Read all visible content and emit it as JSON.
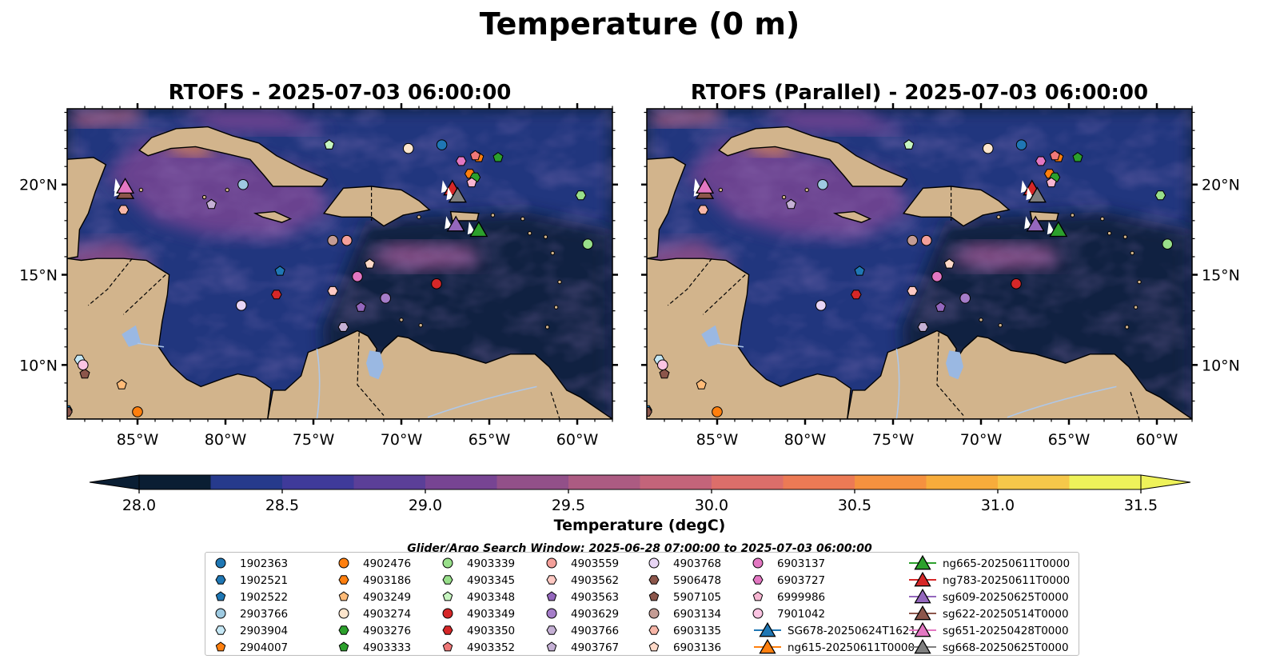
{
  "figure": {
    "suptitle": "Temperature (0 m)",
    "search_window": "Glider/Argo Search Window: 2025-06-28 07:00:00 to 2025-07-03 06:00:00"
  },
  "chart_data": {
    "type": "heatmap",
    "panels": [
      {
        "title": "RTOFS - 2025-07-03 06:00:00"
      },
      {
        "title": "RTOFS (Parallel) - 2025-07-03 06:00:00"
      }
    ],
    "xlim": [
      -89,
      -58
    ],
    "ylim": [
      7,
      24.2
    ],
    "xticks": [
      -85,
      -80,
      -75,
      -70,
      -65,
      -60
    ],
    "xtick_labels": [
      "85°W",
      "80°W",
      "75°W",
      "70°W",
      "65°W",
      "60°W"
    ],
    "yticks": [
      10,
      15,
      20
    ],
    "ytick_labels": [
      "10°N",
      "15°N",
      "20°N"
    ],
    "colorbar": {
      "label": "Temperature (degC)",
      "min": 28.0,
      "max": 31.5,
      "ticks": [
        28.0,
        28.5,
        29.0,
        29.5,
        30.0,
        30.5,
        31.0,
        31.5
      ],
      "tick_labels": [
        "28.0",
        "28.5",
        "29.0",
        "29.5",
        "30.0",
        "30.5",
        "31.0",
        "31.5"
      ],
      "colors": [
        "#0a1e33",
        "#13305a",
        "#263a8c",
        "#3f3a9a",
        "#5b3f98",
        "#774493",
        "#925089",
        "#ac5b82",
        "#c4647a",
        "#dc6e6a",
        "#ec7a55",
        "#f5913f",
        "#f7ac3b",
        "#f6c84a",
        "#eef25a"
      ],
      "extend": "both"
    },
    "land_color": "#d2b48c",
    "lake_color": "#9ab8e2",
    "argo_floats": [
      {
        "id": "1902363",
        "lon": -67.7,
        "lat": 22.2,
        "marker": "circle",
        "color": "#1f77b4"
      },
      {
        "id": "1902521",
        "lon": -89.0,
        "lat": 7.5,
        "marker": "hexagon",
        "color": "#1f77b4"
      },
      {
        "id": "1902522",
        "lon": -76.9,
        "lat": 15.2,
        "marker": "pentagon",
        "color": "#1f77b4"
      },
      {
        "id": "2903766",
        "lon": -79.0,
        "lat": 20.0,
        "marker": "circle",
        "color": "#9ecae1"
      },
      {
        "id": "2903904",
        "lon": -88.3,
        "lat": 10.3,
        "marker": "hexagon",
        "color": "#c6e8f5"
      },
      {
        "id": "2904007",
        "lon": -65.6,
        "lat": 21.5,
        "marker": "pentagon",
        "color": "#ff7f0e"
      },
      {
        "id": "4902476",
        "lon": -85.0,
        "lat": 7.4,
        "marker": "circle",
        "color": "#ff7f0e"
      },
      {
        "id": "4903186",
        "lon": -66.1,
        "lat": 20.6,
        "marker": "hexagon",
        "color": "#ff7f0e"
      },
      {
        "id": "4903249",
        "lon": -85.9,
        "lat": 8.9,
        "marker": "pentagon",
        "color": "#ffbb78"
      },
      {
        "id": "4903274",
        "lon": -69.6,
        "lat": 22.0,
        "marker": "circle",
        "color": "#fde5cc"
      },
      {
        "id": "4903276",
        "lon": -65.8,
        "lat": 20.4,
        "marker": "hexagon",
        "color": "#2ca02c"
      },
      {
        "id": "4903333",
        "lon": -64.5,
        "lat": 21.5,
        "marker": "pentagon",
        "color": "#2ca02c"
      },
      {
        "id": "4903339",
        "lon": -59.4,
        "lat": 16.7,
        "marker": "circle",
        "color": "#98df8a"
      },
      {
        "id": "4903345",
        "lon": -59.8,
        "lat": 19.4,
        "marker": "hexagon",
        "color": "#98df8a"
      },
      {
        "id": "4903348",
        "lon": -74.1,
        "lat": 22.2,
        "marker": "pentagon",
        "color": "#c7f5c0"
      },
      {
        "id": "4903349",
        "lon": -68.0,
        "lat": 14.5,
        "marker": "circle",
        "color": "#d62728"
      },
      {
        "id": "4903350",
        "lon": -77.1,
        "lat": 13.9,
        "marker": "hexagon",
        "color": "#d62728"
      },
      {
        "id": "4903352",
        "lon": -65.8,
        "lat": 21.6,
        "marker": "pentagon",
        "color": "#f07878"
      },
      {
        "id": "4903559",
        "lon": -73.1,
        "lat": 16.9,
        "marker": "circle",
        "color": "#f4a09a"
      },
      {
        "id": "4903562",
        "lon": -73.9,
        "lat": 14.1,
        "marker": "hexagon",
        "color": "#ffc9c3"
      },
      {
        "id": "4903563",
        "lon": -72.3,
        "lat": 13.2,
        "marker": "pentagon",
        "color": "#9467bd"
      },
      {
        "id": "4903629",
        "lon": -70.9,
        "lat": 13.7,
        "marker": "circle",
        "color": "#a57dc9"
      },
      {
        "id": "4903766",
        "lon": -73.3,
        "lat": 12.1,
        "marker": "hexagon",
        "color": "#c5b0d5"
      },
      {
        "id": "4903767",
        "lon": -80.8,
        "lat": 18.9,
        "marker": "pentagon",
        "color": "#c5b0d5"
      },
      {
        "id": "4903768",
        "lon": -79.1,
        "lat": 13.3,
        "marker": "circle",
        "color": "#e8d5f5"
      },
      {
        "id": "5906478",
        "lon": -89.0,
        "lat": 7.4,
        "marker": "hexagon",
        "color": "#8c564b"
      },
      {
        "id": "5907105",
        "lon": -88.0,
        "lat": 9.5,
        "marker": "pentagon",
        "color": "#8c564b"
      },
      {
        "id": "6903134",
        "lon": -73.9,
        "lat": 16.9,
        "marker": "circle",
        "color": "#c49c94"
      },
      {
        "id": "6903135",
        "lon": -85.8,
        "lat": 18.6,
        "marker": "hexagon",
        "color": "#f7b6a8"
      },
      {
        "id": "6903136",
        "lon": -71.8,
        "lat": 15.6,
        "marker": "pentagon",
        "color": "#ffd9c8"
      },
      {
        "id": "6903137",
        "lon": -72.5,
        "lat": 14.9,
        "marker": "circle",
        "color": "#e377c2"
      },
      {
        "id": "6903727",
        "lon": -66.6,
        "lat": 21.3,
        "marker": "hexagon",
        "color": "#e377c2"
      },
      {
        "id": "6999986",
        "lon": -66.0,
        "lat": 20.1,
        "marker": "pentagon",
        "color": "#f7b6d2"
      },
      {
        "id": "7901042",
        "lon": -88.1,
        "lat": 10.0,
        "marker": "circle",
        "color": "#fbc4e2"
      }
    ],
    "gliders": [
      {
        "id": "SG678-20250624T1621",
        "color": "#1f77b4",
        "lon": null,
        "lat": null
      },
      {
        "id": "ng615-20250611T0000",
        "color": "#ff7f0e",
        "lon": null,
        "lat": null
      },
      {
        "id": "ng665-20250611T0000",
        "color": "#2ca02c",
        "lon": -65.6,
        "lat": 17.5
      },
      {
        "id": "ng783-20250611T0000",
        "color": "#d62728",
        "lon": -67.1,
        "lat": 19.8
      },
      {
        "id": "sg609-20250625T0000",
        "color": "#9467bd",
        "lon": -66.9,
        "lat": 17.8
      },
      {
        "id": "sg622-20250514T0000",
        "color": "#8c564b",
        "lon": -85.7,
        "lat": 19.6
      },
      {
        "id": "sg651-20250428T0000",
        "color": "#e377c2",
        "lon": -85.7,
        "lat": 19.9
      },
      {
        "id": "sg668-20250625T0000",
        "color": "#7f7f7f",
        "lon": -66.8,
        "lat": 19.4
      }
    ]
  }
}
